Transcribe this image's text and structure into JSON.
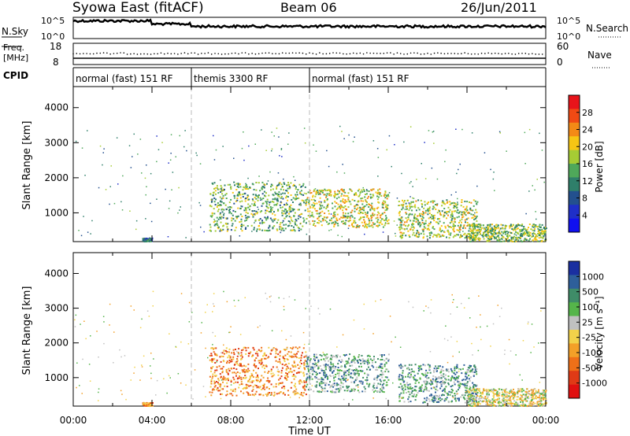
{
  "header": {
    "title": "Syowa East (fitACF)",
    "beam": "Beam 06",
    "date": "26/Jun/2011"
  },
  "top_panels": {
    "nsky_label": "N.Sky",
    "nsky_ticks": [
      "10^5",
      "10^0"
    ],
    "nsearch_label": "N.Search",
    "nsearch_ticks": [
      "10^5",
      "10^0"
    ],
    "freq_label": "Freq.",
    "freq_unit": "[MHz]",
    "freq_ticks": [
      "18",
      "8"
    ],
    "nave_label": "Nave",
    "nave_ticks": [
      "60",
      "0"
    ],
    "cpid_label": "CPID",
    "cpid_segments": [
      {
        "label": "normal (fast) 151 RF",
        "start_h": 0,
        "end_h": 6
      },
      {
        "label": "themis 3300 RF",
        "start_h": 6,
        "end_h": 12
      },
      {
        "label": "normal (fast) 151 RF",
        "start_h": 12,
        "end_h": 24
      }
    ]
  },
  "chart_data": [
    {
      "type": "heatmap",
      "name": "power",
      "ylabel": "Slant Range [km]",
      "yticks": [
        1000,
        2000,
        3000,
        4000
      ],
      "ylim": [
        180,
        4600
      ],
      "xlim": [
        0,
        24
      ],
      "colorbar_label": "Power [dB]",
      "colorbar_ticks": [
        "28",
        "24",
        "20",
        "16",
        "12",
        "8",
        "4"
      ],
      "colorbar_colors": [
        "#e8141a",
        "#f04a14",
        "#f38a16",
        "#f6c614",
        "#a6cc34",
        "#4fa85a",
        "#2f7f6a",
        "#23508e",
        "#1f2fc8",
        "#1010f0"
      ],
      "echo_regions": [
        {
          "h0": 6.9,
          "h1": 11.8,
          "r0": 500,
          "r1": 1900,
          "level": 0.45
        },
        {
          "h0": 11.8,
          "h1": 16.0,
          "r0": 600,
          "r1": 1700,
          "level": 0.6
        },
        {
          "h0": 16.5,
          "h1": 20.5,
          "r0": 300,
          "r1": 1400,
          "level": 0.55
        },
        {
          "h0": 20.0,
          "h1": 24.0,
          "r0": 200,
          "r1": 700,
          "level": 0.5
        },
        {
          "h0": 3.5,
          "h1": 4.0,
          "r0": 200,
          "r1": 300,
          "level": 0.3
        }
      ]
    },
    {
      "type": "heatmap",
      "name": "velocity",
      "ylabel": "Slant Range [km]",
      "xlabel": "Time UT",
      "yticks": [
        1000,
        2000,
        3000,
        4000
      ],
      "ylim": [
        180,
        4600
      ],
      "xlim": [
        0,
        24
      ],
      "xticks": [
        "00:00",
        "04:00",
        "08:00",
        "12:00",
        "16:00",
        "20:00",
        "00:00"
      ],
      "colorbar_label": "Velocity [m s⁻¹]",
      "colorbar_ticks": [
        "1000",
        "500",
        "100",
        "25",
        "-25",
        "-100",
        "-500",
        "-1000"
      ],
      "colorbar_colors": [
        "#1a2fa0",
        "#2e5f9a",
        "#3f8c68",
        "#55b54a",
        "#c0c0c0",
        "#f2d24a",
        "#f3a028",
        "#ef7018",
        "#e03a16",
        "#e01010"
      ],
      "echo_regions": [
        {
          "h0": 6.9,
          "h1": 11.8,
          "r0": 500,
          "r1": 1900,
          "sign": -1
        },
        {
          "h0": 11.8,
          "h1": 16.0,
          "r0": 600,
          "r1": 1700,
          "sign": 1
        },
        {
          "h0": 16.5,
          "h1": 20.5,
          "r0": 300,
          "r1": 1400,
          "sign": 1
        },
        {
          "h0": 20.0,
          "h1": 24.0,
          "r0": 200,
          "r1": 700,
          "sign": 0
        },
        {
          "h0": 3.5,
          "h1": 4.0,
          "r0": 200,
          "r1": 300,
          "sign": -1
        }
      ]
    }
  ]
}
